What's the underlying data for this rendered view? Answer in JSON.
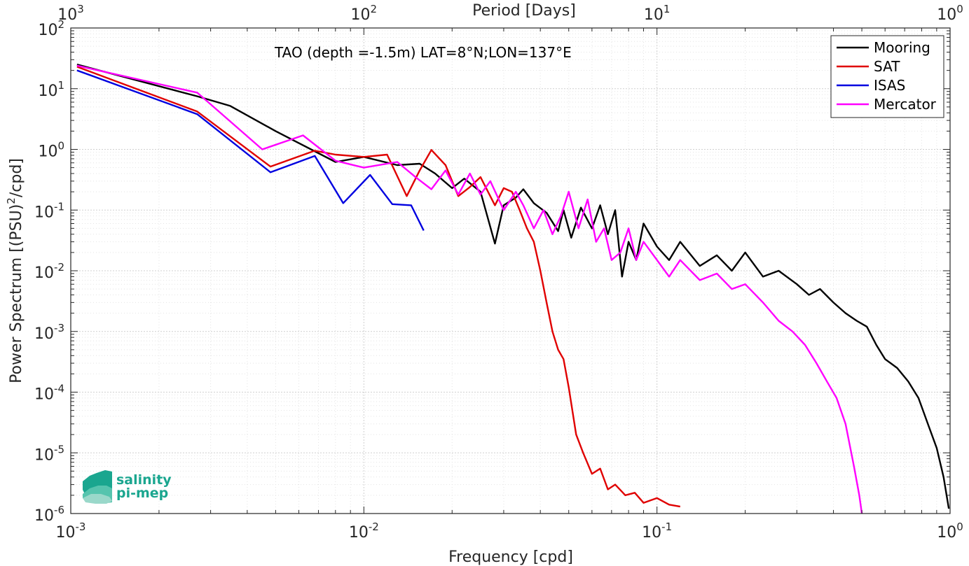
{
  "chart_data": {
    "type": "line",
    "annotation": "TAO (depth =-1.5m) LAT=8°N;LON=137°E",
    "xlabel": "Frequency [cpd]",
    "ylabel_main": "Power Spectrum [(PSU)",
    "ylabel_sup": "2",
    "ylabel_tail": "/cpd]",
    "top_xlabel": "Period [Days]",
    "xscale": "log",
    "yscale": "log",
    "xlim": [
      0.001,
      1
    ],
    "ylim": [
      1e-06,
      100
    ],
    "grid": true,
    "legend_position": "top-right",
    "x_ticks": [
      {
        "base": "10",
        "exp": "-3",
        "value": 0.001
      },
      {
        "base": "10",
        "exp": "-2",
        "value": 0.01
      },
      {
        "base": "10",
        "exp": "-1",
        "value": 0.1
      },
      {
        "base": "10",
        "exp": "0",
        "value": 1
      }
    ],
    "top_ticks": [
      {
        "base": "10",
        "exp": "3",
        "value": 0.001
      },
      {
        "base": "10",
        "exp": "2",
        "value": 0.01
      },
      {
        "base": "10",
        "exp": "1",
        "value": 0.1
      },
      {
        "base": "10",
        "exp": "0",
        "value": 1
      }
    ],
    "y_ticks": [
      {
        "base": "10",
        "exp": "2",
        "value": 100
      },
      {
        "base": "10",
        "exp": "1",
        "value": 10
      },
      {
        "base": "10",
        "exp": "0",
        "value": 1
      },
      {
        "base": "10",
        "exp": "-1",
        "value": 0.1
      },
      {
        "base": "10",
        "exp": "-2",
        "value": 0.01
      },
      {
        "base": "10",
        "exp": "-3",
        "value": 0.001
      },
      {
        "base": "10",
        "exp": "-4",
        "value": 0.0001
      },
      {
        "base": "10",
        "exp": "-5",
        "value": 1e-05
      },
      {
        "base": "10",
        "exp": "-6",
        "value": 1e-06
      }
    ],
    "series": [
      {
        "name": "Mooring",
        "color": "#000000",
        "x": [
          0.00105,
          0.0027,
          0.0035,
          0.005,
          0.008,
          0.01,
          0.013,
          0.0155,
          0.0175,
          0.02,
          0.022,
          0.025,
          0.028,
          0.03,
          0.033,
          0.035,
          0.038,
          0.042,
          0.046,
          0.048,
          0.051,
          0.055,
          0.06,
          0.064,
          0.068,
          0.072,
          0.076,
          0.08,
          0.085,
          0.09,
          0.1,
          0.11,
          0.12,
          0.14,
          0.16,
          0.18,
          0.2,
          0.23,
          0.26,
          0.3,
          0.33,
          0.36,
          0.4,
          0.44,
          0.48,
          0.52,
          0.56,
          0.6,
          0.66,
          0.72,
          0.78,
          0.84,
          0.9,
          0.95,
          0.99
        ],
        "y": [
          25,
          7.5,
          5.2,
          2.0,
          0.62,
          0.75,
          0.55,
          0.58,
          0.4,
          0.23,
          0.33,
          0.2,
          0.028,
          0.12,
          0.16,
          0.22,
          0.13,
          0.09,
          0.045,
          0.1,
          0.035,
          0.11,
          0.05,
          0.12,
          0.04,
          0.1,
          0.008,
          0.03,
          0.015,
          0.06,
          0.025,
          0.015,
          0.03,
          0.012,
          0.018,
          0.01,
          0.02,
          0.008,
          0.01,
          0.006,
          0.004,
          0.005,
          0.003,
          0.002,
          0.0015,
          0.0012,
          0.0006,
          0.00035,
          0.00025,
          0.00015,
          8e-05,
          3e-05,
          1.2e-05,
          4e-06,
          1.2e-06
        ]
      },
      {
        "name": "SAT",
        "color": "#e00000",
        "x": [
          0.00105,
          0.0027,
          0.0048,
          0.0068,
          0.008,
          0.01,
          0.012,
          0.014,
          0.0155,
          0.017,
          0.019,
          0.021,
          0.023,
          0.025,
          0.028,
          0.03,
          0.032,
          0.034,
          0.036,
          0.038,
          0.04,
          0.042,
          0.044,
          0.046,
          0.048,
          0.05,
          0.053,
          0.056,
          0.06,
          0.064,
          0.068,
          0.072,
          0.078,
          0.084,
          0.09,
          0.1,
          0.11,
          0.12
        ],
        "y": [
          23,
          4.2,
          0.52,
          0.95,
          0.82,
          0.75,
          0.82,
          0.17,
          0.45,
          0.98,
          0.55,
          0.17,
          0.24,
          0.35,
          0.12,
          0.23,
          0.2,
          0.1,
          0.05,
          0.03,
          0.01,
          0.003,
          0.001,
          0.0005,
          0.00035,
          0.00012,
          2e-05,
          1e-05,
          4.5e-06,
          5.5e-06,
          2.5e-06,
          3e-06,
          2e-06,
          2.2e-06,
          1.5e-06,
          1.8e-06,
          1.4e-06,
          1.3e-06
        ]
      },
      {
        "name": "ISAS",
        "color": "#0000e0",
        "x": [
          0.00105,
          0.0027,
          0.0048,
          0.0068,
          0.0085,
          0.0105,
          0.0125,
          0.0145,
          0.016
        ],
        "y": [
          20,
          3.8,
          0.42,
          0.78,
          0.13,
          0.38,
          0.125,
          0.12,
          0.046
        ]
      },
      {
        "name": "Mercator",
        "color": "#ff00ff",
        "x": [
          0.00105,
          0.0027,
          0.0045,
          0.0062,
          0.008,
          0.01,
          0.013,
          0.015,
          0.017,
          0.019,
          0.021,
          0.023,
          0.025,
          0.027,
          0.03,
          0.033,
          0.035,
          0.038,
          0.041,
          0.044,
          0.047,
          0.05,
          0.054,
          0.058,
          0.062,
          0.066,
          0.07,
          0.075,
          0.08,
          0.085,
          0.09,
          0.1,
          0.11,
          0.12,
          0.14,
          0.16,
          0.18,
          0.2,
          0.23,
          0.26,
          0.29,
          0.32,
          0.35,
          0.38,
          0.41,
          0.44,
          0.47,
          0.49,
          0.5
        ],
        "y": [
          24,
          8.6,
          1.0,
          1.7,
          0.65,
          0.5,
          0.62,
          0.35,
          0.22,
          0.45,
          0.18,
          0.4,
          0.18,
          0.3,
          0.1,
          0.2,
          0.12,
          0.05,
          0.1,
          0.04,
          0.08,
          0.2,
          0.05,
          0.15,
          0.03,
          0.05,
          0.015,
          0.02,
          0.05,
          0.015,
          0.03,
          0.015,
          0.008,
          0.015,
          0.007,
          0.009,
          0.005,
          0.006,
          0.003,
          0.0015,
          0.001,
          0.0006,
          0.0003,
          0.00015,
          8e-05,
          3e-05,
          6e-06,
          2e-06,
          1e-06
        ]
      }
    ]
  },
  "logo": {
    "line1": "salinity",
    "line2": "pi-mep"
  }
}
